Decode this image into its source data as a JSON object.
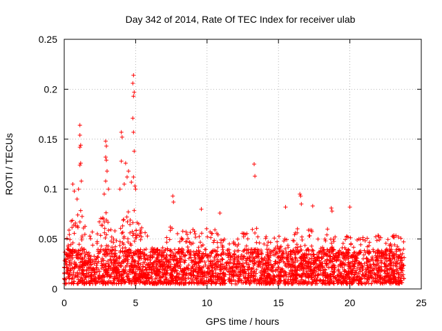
{
  "chart_data": {
    "type": "scatter",
    "title": "Day 342 of 2014, Rate Of TEC Index for receiver ulab",
    "xlabel": "GPS time / hours",
    "ylabel": "ROTI / TECUs",
    "xlim": [
      0,
      25
    ],
    "ylim": [
      0,
      0.25
    ],
    "x_ticks": [
      0,
      5,
      10,
      15,
      20,
      25
    ],
    "x_tick_labels": [
      "0",
      "5",
      "10",
      "15",
      "20",
      "25"
    ],
    "y_ticks": [
      0,
      0.05,
      0.1,
      0.15,
      0.2,
      0.25
    ],
    "y_tick_labels": [
      "0",
      "0.05",
      "0.1",
      "0.15",
      "0.2",
      "0.25"
    ],
    "grid": true,
    "marker": "+",
    "color": "#ff0000",
    "dense_band": {
      "x_range": [
        0,
        23.8
      ],
      "y_floor": 0.005,
      "typical_max": 0.04,
      "samples_per_hour": 140
    },
    "envelope": [
      [
        0.0,
        0.045
      ],
      [
        0.5,
        0.07
      ],
      [
        1.0,
        0.085
      ],
      [
        1.5,
        0.065
      ],
      [
        2.0,
        0.06
      ],
      [
        2.5,
        0.07
      ],
      [
        3.0,
        0.08
      ],
      [
        3.5,
        0.06
      ],
      [
        4.0,
        0.075
      ],
      [
        4.5,
        0.085
      ],
      [
        5.0,
        0.08
      ],
      [
        5.5,
        0.06
      ],
      [
        6.0,
        0.05
      ],
      [
        6.5,
        0.04
      ],
      [
        7.0,
        0.05
      ],
      [
        7.5,
        0.07
      ],
      [
        8.0,
        0.055
      ],
      [
        8.5,
        0.06
      ],
      [
        9.0,
        0.065
      ],
      [
        9.5,
        0.06
      ],
      [
        10.0,
        0.065
      ],
      [
        10.5,
        0.06
      ],
      [
        11.0,
        0.055
      ],
      [
        11.5,
        0.05
      ],
      [
        12.0,
        0.055
      ],
      [
        12.5,
        0.06
      ],
      [
        13.0,
        0.06
      ],
      [
        13.5,
        0.065
      ],
      [
        14.0,
        0.055
      ],
      [
        14.5,
        0.05
      ],
      [
        15.0,
        0.055
      ],
      [
        15.5,
        0.05
      ],
      [
        16.0,
        0.055
      ],
      [
        16.5,
        0.065
      ],
      [
        17.0,
        0.06
      ],
      [
        17.5,
        0.06
      ],
      [
        18.0,
        0.055
      ],
      [
        18.5,
        0.065
      ],
      [
        19.0,
        0.06
      ],
      [
        19.5,
        0.05
      ],
      [
        20.0,
        0.055
      ],
      [
        20.5,
        0.05
      ],
      [
        21.0,
        0.055
      ],
      [
        21.5,
        0.06
      ],
      [
        22.0,
        0.055
      ],
      [
        22.5,
        0.05
      ],
      [
        23.0,
        0.055
      ],
      [
        23.8,
        0.05
      ]
    ],
    "outliers": [
      {
        "x": 0.6,
        "y": 0.105
      },
      {
        "x": 0.7,
        "y": 0.098
      },
      {
        "x": 0.9,
        "y": 0.09
      },
      {
        "x": 1.1,
        "y": 0.164
      },
      {
        "x": 1.1,
        "y": 0.154
      },
      {
        "x": 1.15,
        "y": 0.144
      },
      {
        "x": 1.1,
        "y": 0.142
      },
      {
        "x": 1.15,
        "y": 0.126
      },
      {
        "x": 1.1,
        "y": 0.124
      },
      {
        "x": 1.2,
        "y": 0.108
      },
      {
        "x": 1.0,
        "y": 0.1
      },
      {
        "x": 2.9,
        "y": 0.148
      },
      {
        "x": 2.95,
        "y": 0.143
      },
      {
        "x": 2.9,
        "y": 0.132
      },
      {
        "x": 2.95,
        "y": 0.129
      },
      {
        "x": 3.0,
        "y": 0.118
      },
      {
        "x": 2.9,
        "y": 0.108
      },
      {
        "x": 3.1,
        "y": 0.1
      },
      {
        "x": 2.8,
        "y": 0.095
      },
      {
        "x": 4.0,
        "y": 0.157
      },
      {
        "x": 4.05,
        "y": 0.152
      },
      {
        "x": 4.0,
        "y": 0.128
      },
      {
        "x": 4.3,
        "y": 0.126
      },
      {
        "x": 4.5,
        "y": 0.118
      },
      {
        "x": 4.4,
        "y": 0.112
      },
      {
        "x": 4.2,
        "y": 0.105
      },
      {
        "x": 3.9,
        "y": 0.1
      },
      {
        "x": 4.85,
        "y": 0.214
      },
      {
        "x": 4.8,
        "y": 0.206
      },
      {
        "x": 4.9,
        "y": 0.197
      },
      {
        "x": 4.85,
        "y": 0.193
      },
      {
        "x": 4.8,
        "y": 0.171
      },
      {
        "x": 4.85,
        "y": 0.157
      },
      {
        "x": 4.9,
        "y": 0.138
      },
      {
        "x": 4.85,
        "y": 0.112
      },
      {
        "x": 4.7,
        "y": 0.107
      },
      {
        "x": 4.95,
        "y": 0.103
      },
      {
        "x": 5.0,
        "y": 0.1
      },
      {
        "x": 7.6,
        "y": 0.093
      },
      {
        "x": 7.65,
        "y": 0.087
      },
      {
        "x": 9.6,
        "y": 0.08
      },
      {
        "x": 10.9,
        "y": 0.076
      },
      {
        "x": 13.3,
        "y": 0.125
      },
      {
        "x": 13.35,
        "y": 0.113
      },
      {
        "x": 15.5,
        "y": 0.082
      },
      {
        "x": 16.5,
        "y": 0.095
      },
      {
        "x": 16.55,
        "y": 0.093
      },
      {
        "x": 16.6,
        "y": 0.085
      },
      {
        "x": 17.4,
        "y": 0.083
      },
      {
        "x": 18.7,
        "y": 0.081
      },
      {
        "x": 18.75,
        "y": 0.078
      },
      {
        "x": 20.0,
        "y": 0.082
      }
    ]
  }
}
